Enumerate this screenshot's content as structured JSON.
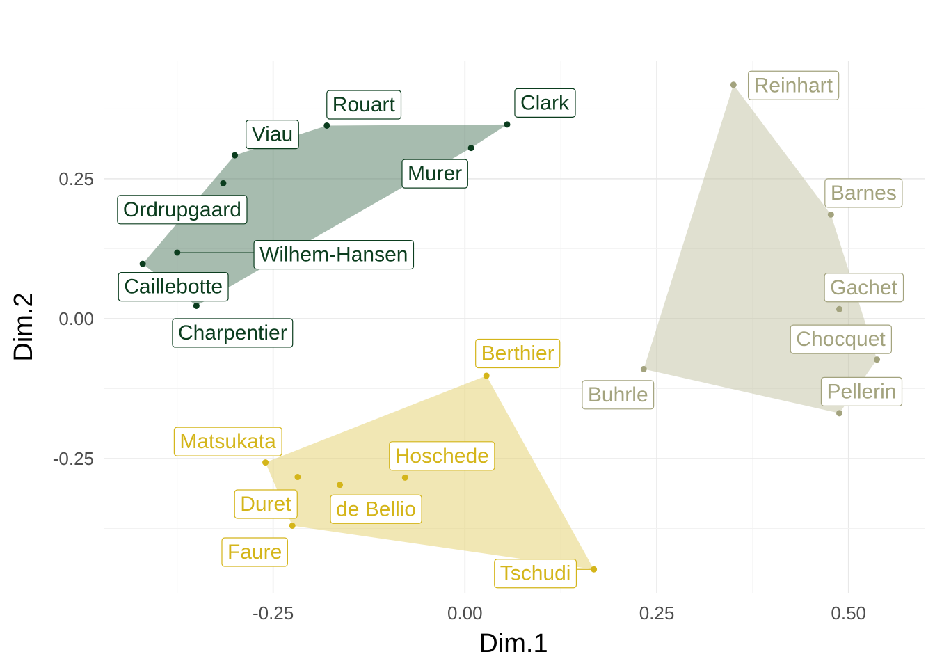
{
  "chart_data": {
    "type": "scatter",
    "xlabel": "Dim.1",
    "ylabel": "Dim.2",
    "xlim": [
      -0.47,
      0.6
    ],
    "ylim": [
      -0.49,
      0.46
    ],
    "x_ticks": [
      -0.25,
      0.0,
      0.25,
      0.5
    ],
    "x_tick_labels": [
      "-0.25",
      "0.00",
      "0.25",
      "0.50"
    ],
    "y_ticks": [
      -0.25,
      0.0,
      0.25
    ],
    "y_tick_labels": [
      "-0.25",
      "0.00",
      "0.25"
    ],
    "grid": true,
    "legend": "none",
    "hulls": true,
    "series": [
      {
        "color": "#0b3d1e",
        "hull_fill": "#4f7a60",
        "hull_order": [
          "Caillebotte",
          "Viau",
          "Rouart",
          "Clark",
          "Murer",
          "Charpentier"
        ],
        "points": [
          {
            "label": "Rouart",
            "x": -0.18,
            "y": 0.345
          },
          {
            "label": "Clark",
            "x": 0.055,
            "y": 0.347
          },
          {
            "label": "Viau",
            "x": -0.3,
            "y": 0.292
          },
          {
            "label": "Murer",
            "x": 0.008,
            "y": 0.305
          },
          {
            "label": "Ordrupgaard",
            "x": -0.315,
            "y": 0.242
          },
          {
            "label": "Wilhem-Hansen",
            "x": -0.375,
            "y": 0.118
          },
          {
            "label": "Caillebotte",
            "x": -0.42,
            "y": 0.098
          },
          {
            "label": "Charpentier",
            "x": -0.35,
            "y": 0.023
          }
        ]
      },
      {
        "color": "#a3a37e",
        "hull_fill": "#c2c2a2",
        "hull_order": [
          "Reinhart",
          "Barnes",
          "Chocquet",
          "Pellerin",
          "Buhrle"
        ],
        "points": [
          {
            "label": "Reinhart",
            "x": 0.35,
            "y": 0.418
          },
          {
            "label": "Barnes",
            "x": 0.477,
            "y": 0.186
          },
          {
            "label": "Gachet",
            "x": 0.488,
            "y": 0.017
          },
          {
            "label": "Chocquet",
            "x": 0.537,
            "y": -0.073
          },
          {
            "label": "Pellerin",
            "x": 0.488,
            "y": -0.169
          },
          {
            "label": "Buhrle",
            "x": 0.233,
            "y": -0.09
          }
        ]
      },
      {
        "color": "#d4b51a",
        "hull_fill": "#e3d06a",
        "hull_order": [
          "Matsukata",
          "Berthier",
          "Tschudi",
          "Faure"
        ],
        "points": [
          {
            "label": "Berthier",
            "x": 0.028,
            "y": -0.102
          },
          {
            "label": "Matsukata",
            "x": -0.26,
            "y": -0.257
          },
          {
            "label": "Hoschede",
            "x": -0.078,
            "y": -0.284
          },
          {
            "label": "Duret",
            "x": -0.218,
            "y": -0.283
          },
          {
            "label": "de Bellio",
            "x": -0.163,
            "y": -0.297
          },
          {
            "label": "Faure",
            "x": -0.225,
            "y": -0.37
          },
          {
            "label": "Tschudi",
            "x": 0.168,
            "y": -0.448
          }
        ]
      }
    ]
  }
}
